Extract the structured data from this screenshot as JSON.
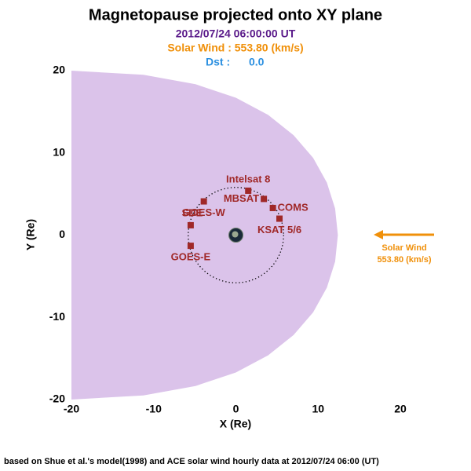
{
  "chart_data": {
    "type": "scatter",
    "title": "Magnetopause projected onto XY plane",
    "date_line": "2012/07/24 06:00:00 UT",
    "solar_wind_line": "Solar Wind : 553.80 (km/s)",
    "dst_label": "Dst :",
    "dst_value": "0.0",
    "x_label": "X (Re)",
    "y_label": "Y (Re)",
    "footer": "based on Shue et al.'s model(1998) and ACE solar wind hourly data at 2012/07/24 06:00 (UT)",
    "xlim": [
      -20,
      20
    ],
    "ylim": [
      -20,
      20
    ],
    "xticks": [
      -20,
      -10,
      0,
      10,
      20
    ],
    "yticks": [
      -20,
      -10,
      0,
      10,
      20
    ],
    "magnetopause": {
      "color": "#dbc3ea",
      "x": [
        -20,
        -11.25,
        -4.92,
        0,
        3.92,
        7.02,
        9.39,
        11.06,
        12.07,
        12.4,
        12.07,
        11.06,
        9.39,
        7.02,
        3.92,
        0,
        -4.92,
        -11.25,
        -20
      ],
      "y": [
        20,
        19.49,
        18.35,
        16.71,
        14.62,
        12.15,
        9.39,
        6.39,
        3.23,
        0,
        -3.23,
        -6.39,
        -9.39,
        -12.15,
        -14.62,
        -16.71,
        -18.35,
        -19.49,
        -20
      ]
    },
    "orbit_radius": 5.8,
    "satellites": {
      "color": "#a02828",
      "labels": [
        "Intelsat 8",
        "MBSAT",
        "COMS",
        "KSAT 5/6",
        "GOES-W",
        "SDE",
        "GOES-E"
      ],
      "x": [
        1.5,
        3.4,
        4.5,
        5.3,
        -3.9,
        -5.5,
        -5.5
      ],
      "y": [
        5.4,
        4.4,
        3.3,
        2.0,
        4.1,
        1.2,
        -1.3
      ]
    },
    "annotation": {
      "lines": [
        "Solar Wind",
        "553.80 (km/s)"
      ],
      "color": "#f0900a"
    }
  }
}
